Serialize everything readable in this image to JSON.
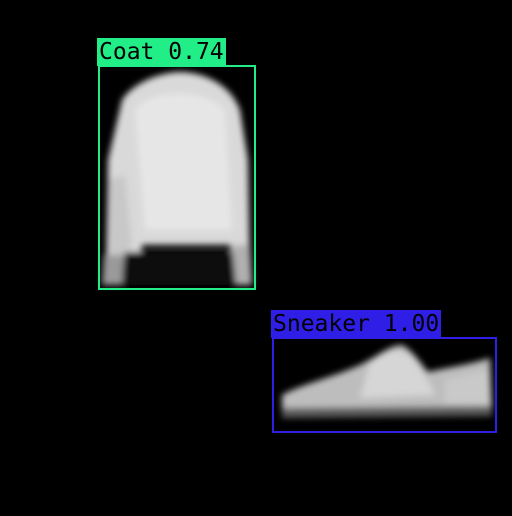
{
  "detections": [
    {
      "class_name": "Coat",
      "score": "0.74",
      "color": "#22ee88"
    },
    {
      "class_name": "Sneaker",
      "score": "1.00",
      "color": "#2f1ee6"
    }
  ]
}
